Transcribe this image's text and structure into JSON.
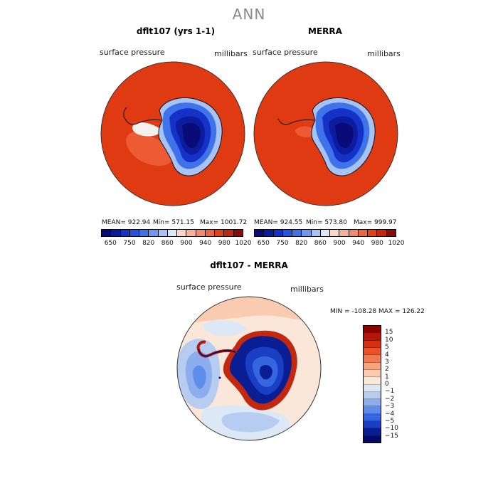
{
  "header": {
    "title": "ANN"
  },
  "panels": {
    "model": {
      "title": "dflt107 (yrs 1-1)",
      "variable_label": "surface pressure",
      "units_label": "millibars",
      "mean_text": "MEAN= 922.94",
      "min_text": "Min= 571.15",
      "max_text": "Max= 1001.72"
    },
    "obs": {
      "title": "MERRA",
      "variable_label": "surface pressure",
      "units_label": "millibars",
      "mean_text": "MEAN= 924.55",
      "min_text": "Min= 573.80",
      "max_text": "Max= 999.97"
    },
    "diff": {
      "title": "dflt107 - MERRA",
      "variable_label": "surface pressure",
      "units_label": "millibars",
      "minmax_text": "MIN = -108.28 MAX = 126.22"
    }
  },
  "colorbar_abs": {
    "colors": [
      "#0a0a78",
      "#0c1c9e",
      "#1431c8",
      "#2353e0",
      "#3f73ea",
      "#6f98f0",
      "#a7c3f6",
      "#dfe7f4",
      "#fbd7c5",
      "#f7b39a",
      "#f28b6c",
      "#ec6440",
      "#e1401b",
      "#c1280d",
      "#8a0a0a"
    ],
    "tick_labels": [
      "650",
      "750",
      "820",
      "860",
      "900",
      "940",
      "980",
      "1020"
    ]
  },
  "colorbar_diff": {
    "colors": [
      "#8b0000",
      "#b4160c",
      "#d8300e",
      "#ea5226",
      "#f07a4f",
      "#f6a47e",
      "#f9cbb0",
      "#fbe7da",
      "#dde8f7",
      "#b6cdf1",
      "#8caeee",
      "#5f8deb",
      "#3566e0",
      "#1a3fc4",
      "#0a1e94",
      "#040a6a"
    ],
    "tick_labels": [
      "15",
      "10",
      "5",
      "4",
      "3",
      "2",
      "1",
      "0",
      "−1",
      "−2",
      "−3",
      "−4",
      "−5",
      "−10",
      "−15"
    ]
  }
}
